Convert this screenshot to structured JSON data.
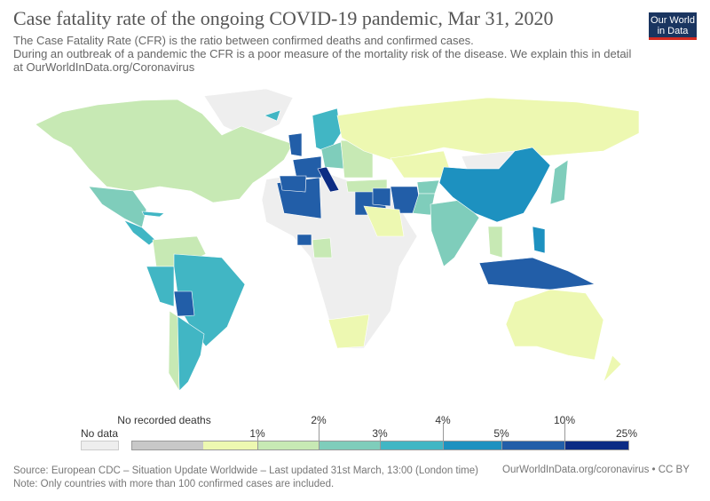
{
  "header": {
    "title": "Case fatality rate of the ongoing COVID-19 pandemic, Mar 31, 2020",
    "subtitle_line1": "The Case Fatality Rate (CFR) is the ratio between confirmed deaths and confirmed cases.",
    "subtitle_line2": " During an outbreak of a pandemic the CFR is a poor measure of the mortality risk of the disease. We explain this in detail at OurWorldInData.org/Coronavirus",
    "logo_line1": "Our World",
    "logo_line2": "in Data"
  },
  "legend": {
    "no_data": "No data",
    "no_data_color": "#eeeeee",
    "no_deaths": "No recorded deaths",
    "ticks": [
      "1%",
      "2%",
      "3%",
      "4%",
      "5%",
      "10%",
      "25%"
    ],
    "bin_colors": [
      "#c8c8c8",
      "#edf8b1",
      "#c7e9b4",
      "#7fcdbb",
      "#41b6c4",
      "#1d91c0",
      "#225ea8",
      "#0c2c84"
    ]
  },
  "footer": {
    "source": "Source: European CDC – Situation Update Worldwide – Last updated 31st March, 13:00 (London time)",
    "note": "Note: Only countries with more than 100 confirmed cases are included.",
    "url": "OurWorldInData.org/coronavirus • CC BY"
  }
}
